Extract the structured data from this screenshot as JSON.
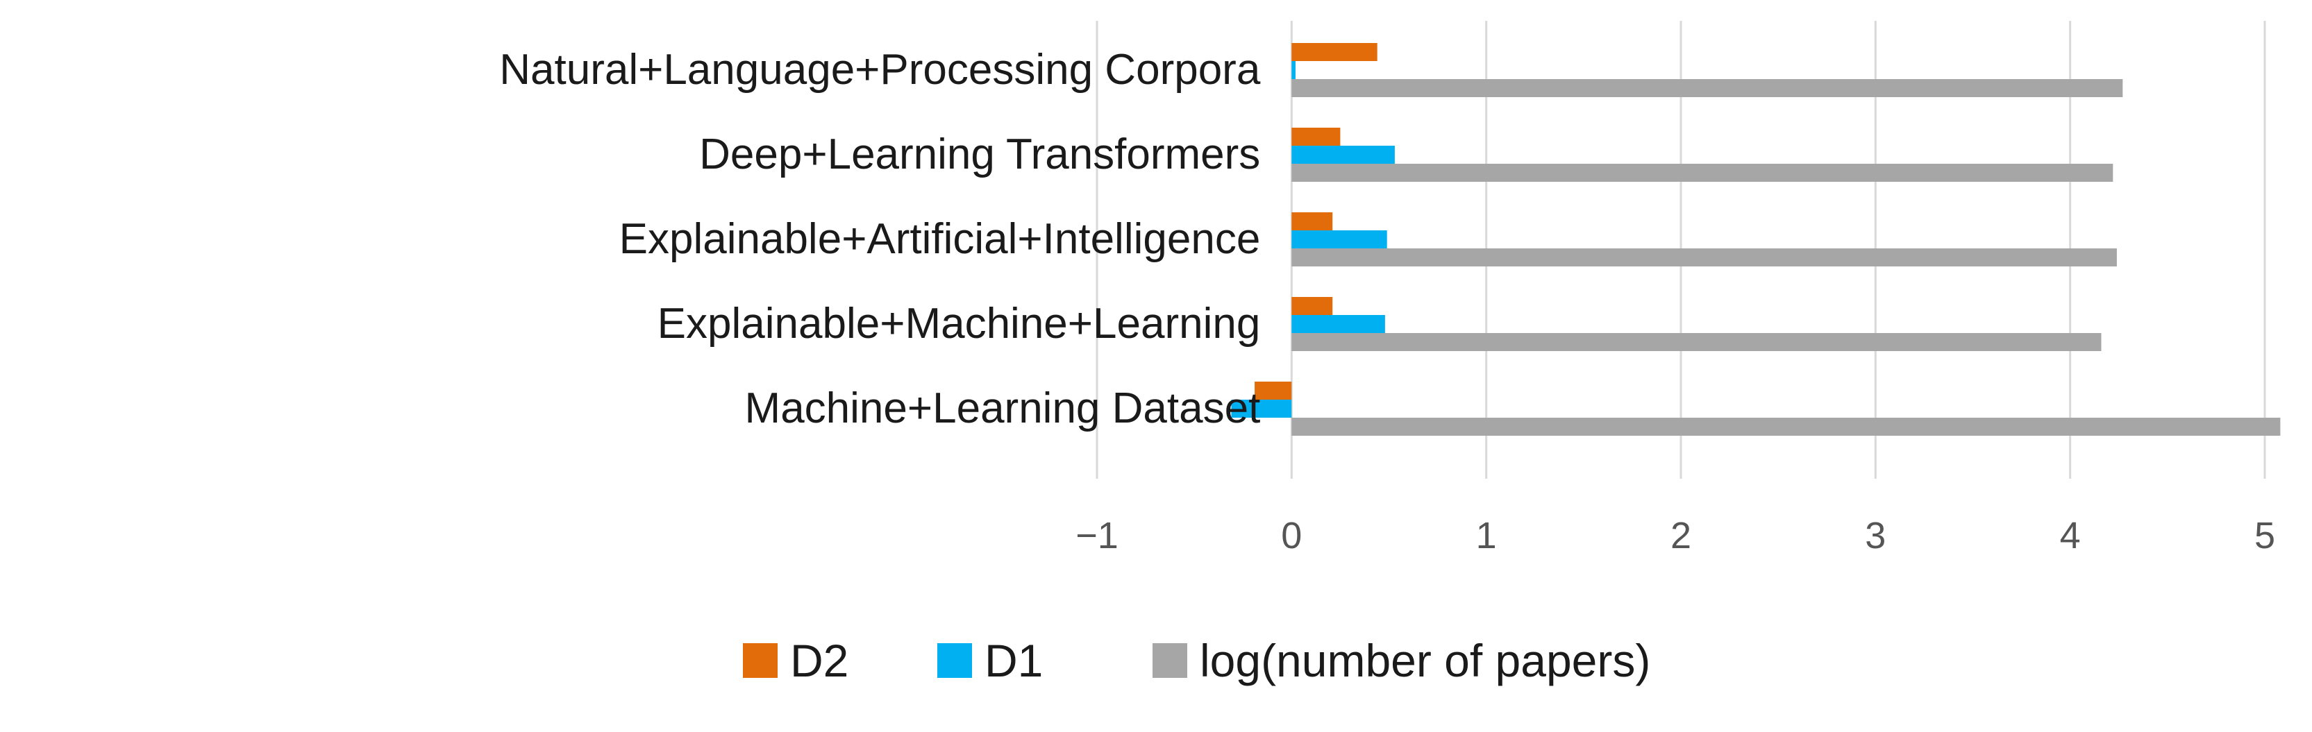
{
  "chart_data": {
    "type": "bar",
    "orientation": "horizontal",
    "categories": [
      "Natural+Language+Processing Corpora",
      "Deep+Learning Transformers",
      "Explainable+Artificial+Intelligence",
      "Explainable+Machine+Learning",
      "Machine+Learning Dataset"
    ],
    "series": [
      {
        "name": "D2",
        "color": "#E36C0A",
        "values": [
          0.44,
          0.25,
          0.21,
          0.21,
          -0.19
        ]
      },
      {
        "name": "D1",
        "color": "#00B0F0",
        "values": [
          0.02,
          0.53,
          0.49,
          0.48,
          -0.31
        ]
      },
      {
        "name": "log(number of papers)",
        "color": "#A6A6A6",
        "values": [
          4.27,
          4.22,
          4.24,
          4.16,
          5.08
        ]
      }
    ],
    "xlim": [
      -1,
      5.1
    ],
    "xticks": [
      -1,
      0,
      1,
      2,
      3,
      4,
      5
    ],
    "xtick_labels": [
      "−1",
      "0",
      "1",
      "2",
      "3",
      "4",
      "5"
    ],
    "title": "",
    "xlabel": "",
    "ylabel": "",
    "grid": "vertical",
    "legend_position": "bottom"
  }
}
